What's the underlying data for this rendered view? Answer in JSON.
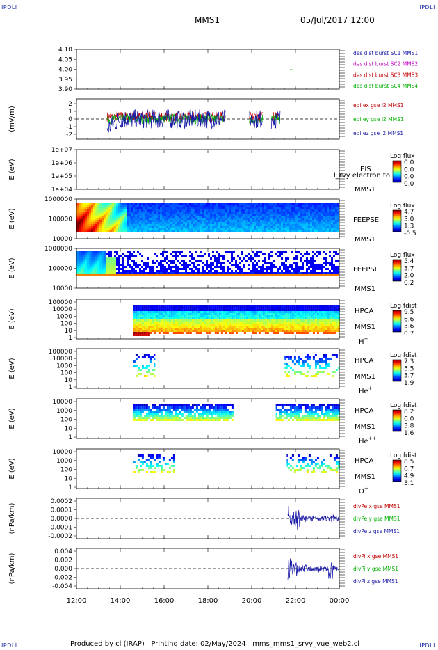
{
  "corner_label": "IPDLI",
  "header": {
    "spacecraft": "MMS1",
    "datetime": "05/Jul/2017 12:00"
  },
  "footer": {
    "text": "Produced by cl (IRAP)   Printing date: 02/May/2024   mms_mms1_srvy_vue_web2.cl"
  },
  "chart_data": [
    {
      "id": "des-dist",
      "type": "line",
      "yticks": [
        "4.10",
        "4.05",
        "4.00",
        "3.95",
        "3.90"
      ],
      "ylim": [
        3.9,
        4.1
      ],
      "points": [
        {
          "x": 21.75,
          "y": 4.0
        }
      ],
      "legend": [
        {
          "text": "des dist burst SC1 MMS1",
          "color": "#1a1aa8"
        },
        {
          "text": "des dist burst SC2 MMS2",
          "color": "#c000c0"
        },
        {
          "text": "des dist burst SC3 MMS3",
          "color": "#c00000"
        },
        {
          "text": "des dist burst SC4 MMS4",
          "color": "#00b000"
        }
      ]
    },
    {
      "id": "edi-e",
      "type": "line",
      "ylabel": "(mV/m)",
      "yticks": [
        "2",
        "1",
        "0",
        "-1",
        "-2"
      ],
      "ylim": [
        -2.5,
        2.5
      ],
      "legend": [
        {
          "text": "edi ex gse l2 MMS1",
          "color": "#c00000"
        },
        {
          "text": "edi ey gse l2 MMS1",
          "color": "#00b000"
        },
        {
          "text": "edi ez gse l2 MMS1",
          "color": "#1a1aa8"
        }
      ],
      "segments": [
        [
          13.4,
          18.8
        ],
        [
          19.9,
          20.5
        ],
        [
          20.9,
          21.3
        ]
      ]
    },
    {
      "id": "eis",
      "type": "heatmap",
      "ylabel": "E (eV)",
      "yticks": [
        "1e+07",
        "1e+06",
        "1e+05",
        "1e+04"
      ],
      "labels": [
        "EIS",
        "MMS1"
      ],
      "overlay_text": "l_rvy electron to",
      "colorbar": {
        "title": "Log flux",
        "ticks": [
          "0.0",
          "0.0",
          "0.0",
          "0.0"
        ]
      }
    },
    {
      "id": "feeps-e",
      "type": "heatmap",
      "ylabel": "E (eV)",
      "yticks": [
        "1000000",
        "100000",
        "10000"
      ],
      "labels": [
        "FEEPSE",
        "MMS1"
      ],
      "colorbar": {
        "title": "Log flux",
        "ticks": [
          "4.7",
          "3.0",
          "1.3",
          "-0.5"
        ]
      }
    },
    {
      "id": "feeps-i",
      "type": "heatmap",
      "ylabel": "E (eV)",
      "yticks": [
        "1000000",
        "100000",
        "10000"
      ],
      "labels": [
        "FEEPSI",
        "MMS1"
      ],
      "colorbar": {
        "title": "Log flux",
        "ticks": [
          "5.4",
          "3.7",
          "2.0",
          "0.2"
        ]
      }
    },
    {
      "id": "hpca-h",
      "type": "heatmap",
      "ylabel": "E (eV)",
      "yticks": [
        "100000",
        "10000",
        "1000",
        "100",
        "10",
        "1"
      ],
      "labels": [
        "HPCA",
        "MMS1",
        "H+"
      ],
      "colorbar": {
        "title": "Log fdist",
        "ticks": [
          "9.5",
          "6.6",
          "3.6",
          "0.7"
        ]
      }
    },
    {
      "id": "hpca-he",
      "type": "heatmap",
      "ylabel": "E (eV)",
      "yticks": [
        "100000",
        "10000",
        "1000",
        "100",
        "10",
        "1"
      ],
      "labels": [
        "HPCA",
        "MMS1",
        "He+"
      ],
      "colorbar": {
        "title": "Log fdist",
        "ticks": [
          "7.3",
          "5.5",
          "3.7",
          "1.9"
        ]
      }
    },
    {
      "id": "hpca-hepp",
      "type": "heatmap",
      "ylabel": "E (eV)",
      "yticks": [
        "10000",
        "1000",
        "100",
        "10",
        "1"
      ],
      "labels": [
        "HPCA",
        "MMS1",
        "He++"
      ],
      "colorbar": {
        "title": "Log fdist",
        "ticks": [
          "8.2",
          "6.0",
          "3.8",
          "1.6"
        ]
      }
    },
    {
      "id": "hpca-o",
      "type": "heatmap",
      "ylabel": "E (eV)",
      "yticks": [
        "10000",
        "1000",
        "100",
        "10",
        "1"
      ],
      "labels": [
        "HPCA",
        "MMS1",
        "O+"
      ],
      "colorbar": {
        "title": "Log fdist",
        "ticks": [
          "8.5",
          "6.7",
          "4.9",
          "3.1"
        ]
      }
    },
    {
      "id": "divpe",
      "type": "line",
      "ylabel": "(nPa/km)",
      "yticks": [
        "0.0002",
        "0.0001",
        "0.0000",
        "-0.0001",
        "-0.0002"
      ],
      "ylim": [
        -0.00025,
        0.00025
      ],
      "legend": [
        {
          "text": "divPe x gse MMS1",
          "color": "#c00000"
        },
        {
          "text": "divPe y gse MMS1",
          "color": "#00b000"
        },
        {
          "text": "divPe z gse MMS1",
          "color": "#1a1aa8"
        }
      ]
    },
    {
      "id": "divpi",
      "type": "line",
      "ylabel": "(nPa/km)",
      "yticks": [
        "0.004",
        "0.002",
        "0.000",
        "-0.002",
        "-0.004"
      ],
      "ylim": [
        -0.0045,
        0.0045
      ],
      "legend": [
        {
          "text": "divPi x gse MMS1",
          "color": "#c00000"
        },
        {
          "text": "divPi y gse MMS1",
          "color": "#00b000"
        },
        {
          "text": "divPi z gse MMS1",
          "color": "#1a1aa8"
        }
      ]
    }
  ],
  "xaxis": {
    "ticks": [
      "12:00",
      "14:00",
      "16:00",
      "18:00",
      "20:00",
      "22:00",
      "00:00"
    ],
    "range_hours": [
      12,
      24
    ]
  }
}
